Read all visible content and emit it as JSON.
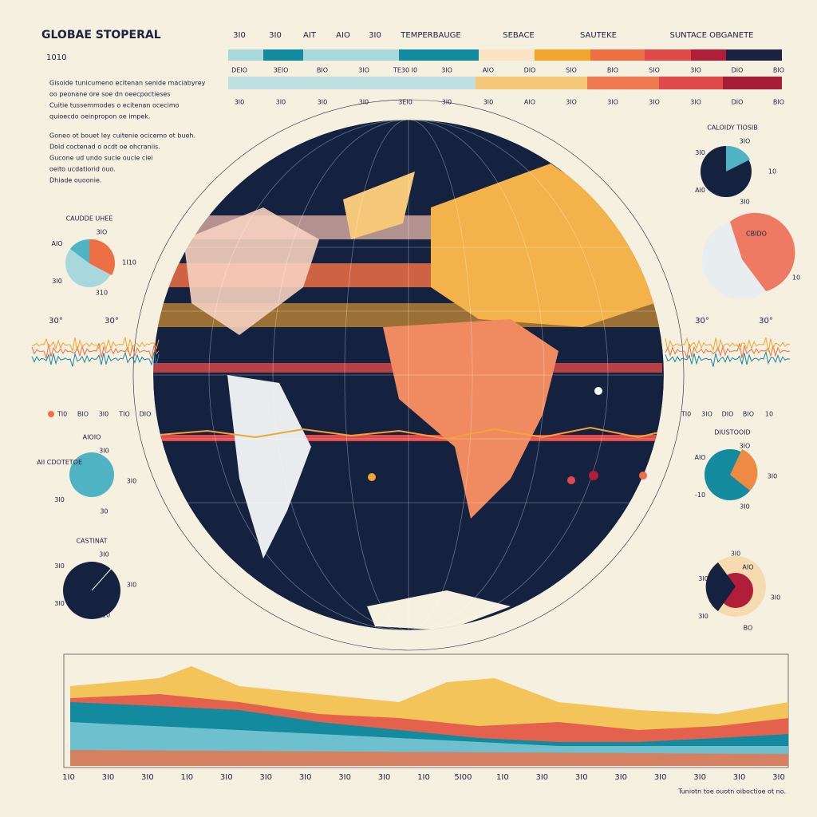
{
  "header": {
    "title": "GLOBAE STOPERAL",
    "subtitle": "1010",
    "paragraphs": [
      "Gisoide tunicumeno ecitenan senide maciabyrey",
      "oo peonane ore soe dn oeecpoctieses",
      "Cuitie tussemmodes o ecitenan ocecimo",
      "quioecdo oeinpropon oe impek.",
      "Goneo ot bouet ley cuitenie ocicemo ot bueh.",
      "Dold coctenad o ocdt oe ohcraniis.",
      "Gucone ud undo sucle oucle ciei",
      "oeito ucdatiorid ouo.",
      "Dhiade ouoonie."
    ]
  },
  "scale": {
    "top_labels": [
      "3I0",
      "3I0",
      "AIT",
      "AIO",
      "3I0",
      "TEMPERBAUGE",
      "SEBACE",
      "SAUTEKE",
      "SUNTACE OBGANETE"
    ],
    "row_labels": [
      "DEIO",
      "3EIO",
      "BIO",
      "3IO",
      "TE30 I0",
      "3IO",
      "AIO",
      "DIO",
      "SIO",
      "BIO",
      "SIO",
      "3IO",
      "DIO",
      "BIO"
    ],
    "bottom_labels": [
      "3I0",
      "3I0",
      "3I0",
      "3I0",
      "3EI0",
      "3I0",
      "3I0",
      "AIO",
      "3IO",
      "3IO",
      "3IO",
      "3IO",
      "DIO",
      "BIO"
    ]
  },
  "widgets": [
    {
      "title": "CAUDDE UHEE",
      "labels": [
        "1I10",
        "310",
        "3I0",
        "AIO",
        "3IO"
      ]
    },
    {
      "title": "AIOIO",
      "labels": [
        "3I0",
        "30",
        "3I0",
        "AII CDOTETOE",
        "3I0"
      ]
    },
    {
      "title": "CASTINAT",
      "labels": [
        "3I0",
        "310",
        "3I0",
        "3I0",
        "3I0"
      ]
    },
    {
      "title": "CALOIDY TIOSIB",
      "labels": [
        "10",
        "3I0",
        "AI0",
        "3I0",
        "3IO"
      ]
    },
    {
      "title": "CBIDO",
      "labels": [
        "10"
      ]
    },
    {
      "title": "DIUSTOOID",
      "labels": [
        "3I0",
        "3I0",
        "-10",
        "AIO",
        "3IO"
      ]
    },
    {
      "title": "3I0",
      "labels": [
        "3I0",
        "BO",
        "3I0",
        "3I0",
        "AIO"
      ]
    }
  ],
  "globe": {
    "labels": [
      "30°",
      "30°",
      "30°",
      "30°"
    ],
    "row_labels": [
      "TI0",
      "BIO",
      "3I0",
      "TIO",
      "DIO",
      "TI0",
      "3IO",
      "DIO",
      "BIO",
      "10"
    ]
  },
  "bottom_chart": {
    "x_labels": [
      "1I0",
      "3I0",
      "3I0",
      "1I0",
      "3I0",
      "3I0",
      "3I0",
      "3I0",
      "3I0",
      "1I0",
      "5I00",
      "1I0",
      "3I0",
      "3I0",
      "3I0",
      "3I0",
      "3I0",
      "3I0",
      "3I0"
    ],
    "note": "Tuniotn toe ouotn oiboctioe ot no."
  }
}
